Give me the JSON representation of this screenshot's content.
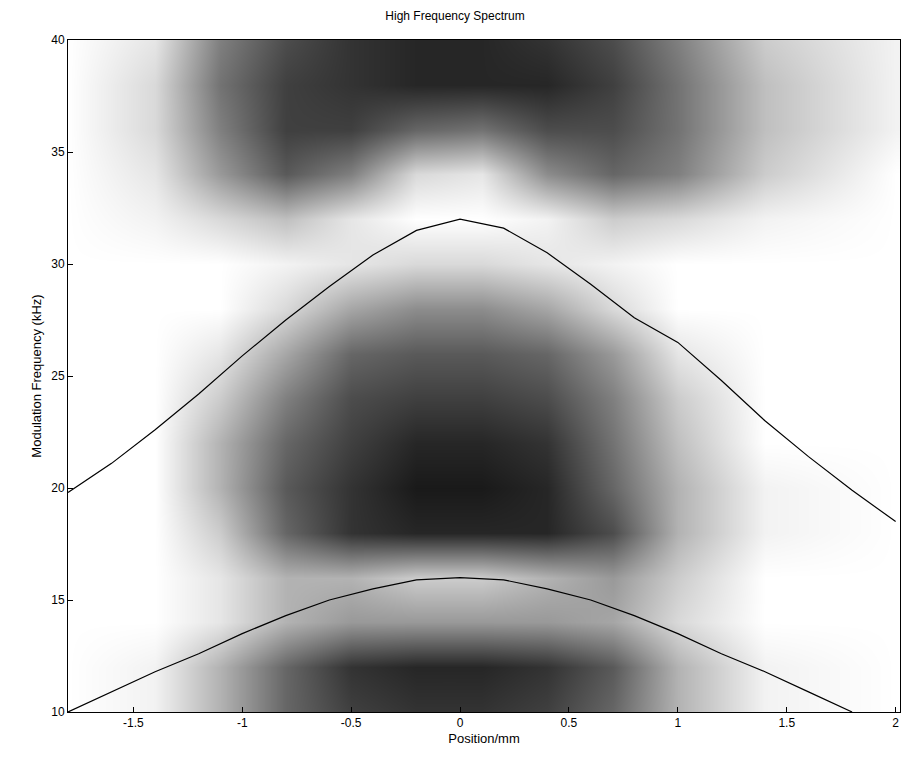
{
  "chart_data": {
    "type": "heatmap",
    "title": "High Frequency Spectrum",
    "x_label": "Position/mm",
    "y_label": "Modulation Frequency (kHz)",
    "xlim": [
      -1.8,
      2.02
    ],
    "ylim": [
      10,
      40
    ],
    "xticks": [
      -1.5,
      -1,
      -0.5,
      0,
      0.5,
      1,
      1.5,
      2
    ],
    "yticks": [
      10,
      15,
      20,
      25,
      30,
      35,
      40
    ],
    "grid": false,
    "heatmap": {
      "x": [
        -1.8,
        -1.4,
        -1.1,
        -0.8,
        -0.5,
        -0.2,
        0.1,
        0.4,
        0.7,
        1.0,
        1.4,
        2.0
      ],
      "y": [
        10,
        12,
        14,
        16,
        18,
        20,
        22,
        24,
        26,
        28,
        30,
        32,
        34,
        36,
        38,
        40
      ],
      "zlim": [
        0,
        1
      ],
      "z": [
        [
          0,
          0.05,
          0.3,
          0.6,
          0.75,
          0.8,
          0.8,
          0.75,
          0.6,
          0.3,
          0.05,
          0
        ],
        [
          0,
          0.05,
          0.3,
          0.6,
          0.8,
          0.85,
          0.85,
          0.8,
          0.65,
          0.3,
          0.05,
          0
        ],
        [
          0,
          0,
          0.1,
          0.3,
          0.4,
          0.4,
          0.4,
          0.4,
          0.35,
          0.15,
          0,
          0
        ],
        [
          0,
          0,
          0.1,
          0.3,
          0.3,
          0.2,
          0.2,
          0.3,
          0.4,
          0.2,
          0,
          0
        ],
        [
          0,
          0,
          0.2,
          0.6,
          0.8,
          0.85,
          0.85,
          0.85,
          0.7,
          0.3,
          0.05,
          0
        ],
        [
          0,
          0,
          0.3,
          0.65,
          0.8,
          0.9,
          0.9,
          0.85,
          0.6,
          0.3,
          0.05,
          0
        ],
        [
          0,
          0,
          0.3,
          0.6,
          0.75,
          0.85,
          0.85,
          0.8,
          0.55,
          0.25,
          0,
          0
        ],
        [
          0,
          0,
          0.2,
          0.5,
          0.7,
          0.75,
          0.75,
          0.7,
          0.5,
          0.2,
          0,
          0
        ],
        [
          0,
          0,
          0.1,
          0.35,
          0.6,
          0.65,
          0.65,
          0.6,
          0.4,
          0.1,
          0,
          0
        ],
        [
          0,
          0,
          0,
          0.15,
          0.35,
          0.45,
          0.45,
          0.35,
          0.15,
          0,
          0,
          0
        ],
        [
          0,
          0,
          0,
          0.05,
          0.1,
          0.15,
          0.15,
          0.1,
          0.05,
          0,
          0,
          0
        ],
        [
          0,
          0.05,
          0.15,
          0.25,
          0.1,
          0,
          0,
          0.05,
          0.2,
          0.15,
          0.05,
          0
        ],
        [
          0,
          0.1,
          0.4,
          0.65,
          0.5,
          0.15,
          0.1,
          0.45,
          0.6,
          0.5,
          0.2,
          0
        ],
        [
          0,
          0.15,
          0.5,
          0.75,
          0.75,
          0.6,
          0.55,
          0.7,
          0.7,
          0.55,
          0.25,
          0.05
        ],
        [
          0,
          0.15,
          0.55,
          0.75,
          0.8,
          0.85,
          0.85,
          0.85,
          0.75,
          0.55,
          0.25,
          0.05
        ],
        [
          0,
          0.1,
          0.5,
          0.7,
          0.8,
          0.85,
          0.85,
          0.8,
          0.7,
          0.5,
          0.2,
          0.05
        ]
      ]
    },
    "series": [
      {
        "type": "line",
        "color": "#000000",
        "x": [
          -1.8,
          -1.6,
          -1.4,
          -1.2,
          -1.0,
          -0.8,
          -0.6,
          -0.4,
          -0.2,
          0,
          0.2,
          0.4,
          0.6,
          0.8,
          1.0,
          1.2,
          1.4,
          1.6,
          1.8,
          2.0
        ],
        "values": [
          19.8,
          21.1,
          22.6,
          24.2,
          25.9,
          27.5,
          29.0,
          30.4,
          31.5,
          32.0,
          31.6,
          30.5,
          29.1,
          27.6,
          26.5,
          24.8,
          23.0,
          21.4,
          19.9,
          18.5
        ]
      },
      {
        "type": "line",
        "color": "#000000",
        "x": [
          -1.8,
          -1.6,
          -1.4,
          -1.2,
          -1.0,
          -0.8,
          -0.6,
          -0.4,
          -0.2,
          0,
          0.2,
          0.4,
          0.6,
          0.8,
          1.0,
          1.2,
          1.4,
          1.6,
          1.8
        ],
        "values": [
          10.0,
          10.9,
          11.8,
          12.6,
          13.5,
          14.3,
          15.0,
          15.5,
          15.9,
          16.0,
          15.9,
          15.5,
          15.0,
          14.3,
          13.5,
          12.6,
          11.8,
          10.9,
          10.0
        ]
      }
    ]
  }
}
